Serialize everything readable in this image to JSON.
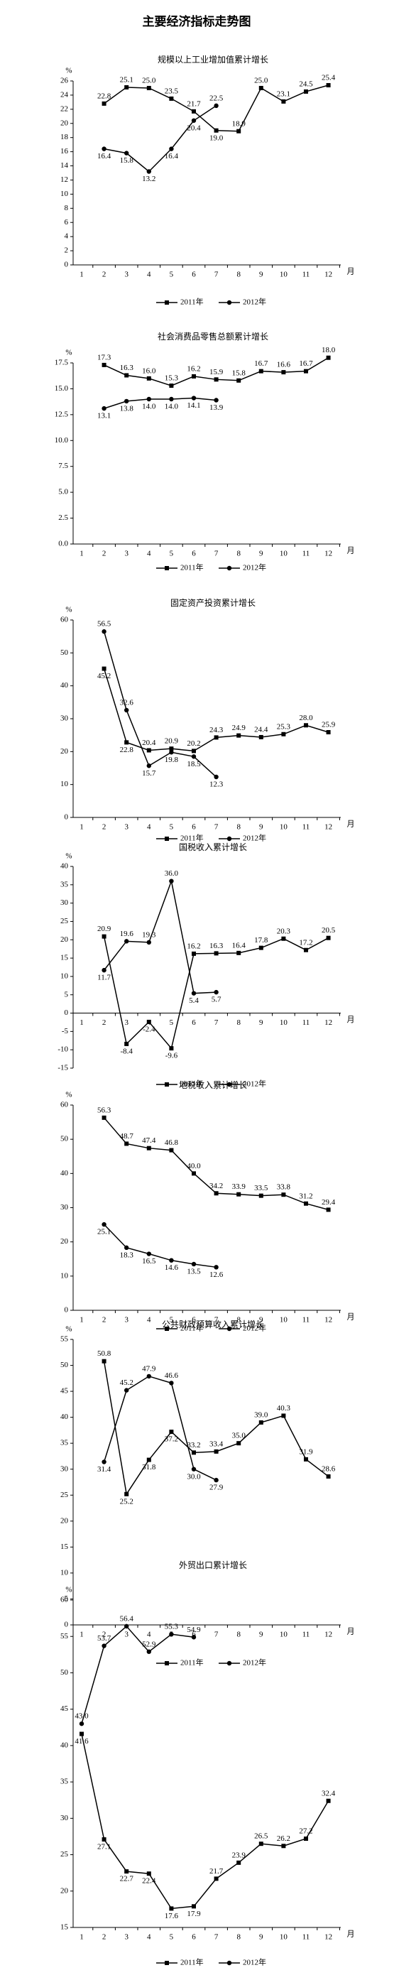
{
  "title": "主要经济指标走势图",
  "chart_data": [
    {
      "type": "line",
      "title": "规模以上工业增加值累计增长",
      "ylabel": "%",
      "xlabel": "月",
      "categories": [
        "1",
        "2",
        "3",
        "4",
        "5",
        "6",
        "7",
        "8",
        "9",
        "10",
        "11",
        "12"
      ],
      "ylim": [
        0,
        26
      ],
      "yticks": [
        0,
        2,
        4,
        6,
        8,
        10,
        12,
        14,
        16,
        18,
        20,
        22,
        24,
        26
      ],
      "series": [
        {
          "name": "2011年",
          "color": "#000000",
          "marker": "square",
          "values": [
            null,
            22.8,
            25.1,
            25.0,
            23.5,
            21.7,
            19.0,
            18.9,
            25.0,
            23.1,
            24.5,
            25.4
          ],
          "value_labels": [
            null,
            "22.8",
            "25.1",
            "25.0",
            "23.5",
            "21.7",
            "19.0",
            "18.9",
            "25.0",
            "23.1",
            "24.5",
            "25.4"
          ]
        },
        {
          "name": "2012年",
          "color": "#000000",
          "marker": "circle",
          "values": [
            null,
            16.4,
            15.8,
            13.2,
            16.4,
            20.4,
            22.5,
            null,
            null,
            null,
            null,
            null
          ],
          "value_labels": [
            null,
            "16.4",
            "15.8",
            "13.2",
            "16.4",
            "20.4",
            "22.5",
            null,
            null,
            null,
            null,
            null
          ]
        }
      ]
    },
    {
      "type": "line",
      "title": "社会消费品零售总额累计增长",
      "ylabel": "%",
      "xlabel": "月",
      "categories": [
        "1",
        "2",
        "3",
        "4",
        "5",
        "6",
        "7",
        "8",
        "9",
        "10",
        "11",
        "12"
      ],
      "ylim": [
        0,
        17.5
      ],
      "yticks": [
        {
          "value": 0,
          "label": "0.0"
        },
        {
          "value": 2.5,
          "label": "2.5"
        },
        {
          "value": 5,
          "label": "5.0"
        },
        {
          "value": 7.5,
          "label": "7.5"
        },
        {
          "value": 10,
          "label": "10.0"
        },
        {
          "value": 12.5,
          "label": "12.5"
        },
        {
          "value": 15,
          "label": "15.0"
        },
        {
          "value": 17.5,
          "label": "17.5"
        }
      ],
      "series": [
        {
          "name": "2011年",
          "color": "#000000",
          "marker": "square",
          "values": [
            null,
            17.3,
            16.3,
            16.0,
            15.3,
            16.2,
            15.9,
            15.8,
            16.7,
            16.6,
            16.7,
            18.0
          ],
          "value_labels": [
            null,
            "17.3",
            "16.3",
            "16.0",
            "15.3",
            "16.2",
            "15.9",
            "15.8",
            "16.7",
            "16.6",
            "16.7",
            "18.0"
          ]
        },
        {
          "name": "2012年",
          "color": "#000000",
          "marker": "circle",
          "values": [
            null,
            13.1,
            13.8,
            14.0,
            14.0,
            14.1,
            13.9,
            null,
            null,
            null,
            null,
            null
          ],
          "value_labels": [
            null,
            "13.1",
            "13.8",
            "14.0",
            "14.0",
            "14.1",
            "13.9",
            null,
            null,
            null,
            null,
            null
          ]
        }
      ]
    },
    {
      "type": "line",
      "title": "固定资产投资累计增长",
      "ylabel": "%",
      "xlabel": "月",
      "categories": [
        "1",
        "2",
        "3",
        "4",
        "5",
        "6",
        "7",
        "8",
        "9",
        "10",
        "11",
        "12"
      ],
      "ylim": [
        0,
        60
      ],
      "yticks": [
        0,
        10,
        20,
        30,
        40,
        50,
        60
      ],
      "series": [
        {
          "name": "2011年",
          "color": "#000000",
          "marker": "square",
          "values": [
            null,
            45.2,
            22.8,
            20.4,
            20.9,
            20.2,
            24.3,
            24.9,
            24.4,
            25.3,
            28.0,
            25.9
          ],
          "value_labels": [
            null,
            "45.2",
            "22.8",
            "20.4",
            "20.9",
            "20.2",
            "24.3",
            "24.9",
            "24.4",
            "25.3",
            "28.0",
            "25.9"
          ]
        },
        {
          "name": "2012年",
          "color": "#000000",
          "marker": "circle",
          "values": [
            null,
            56.5,
            32.6,
            15.7,
            19.8,
            18.5,
            12.3,
            null,
            null,
            null,
            null,
            null
          ],
          "value_labels": [
            null,
            "56.5",
            "32.6",
            "15.7",
            "19.8",
            "18.5",
            "12.3",
            null,
            null,
            null,
            null,
            null
          ]
        }
      ]
    },
    {
      "type": "line",
      "title": "国税收入累计增长",
      "ylabel": "%",
      "xlabel": "月",
      "categories": [
        "1",
        "2",
        "3",
        "4",
        "5",
        "6",
        "7",
        "8",
        "9",
        "10",
        "11",
        "12"
      ],
      "ylim": [
        -15,
        40
      ],
      "yticks": [
        -15,
        -10,
        -5,
        0,
        5,
        10,
        15,
        20,
        25,
        30,
        35,
        40
      ],
      "series": [
        {
          "name": "2011年",
          "color": "#000000",
          "marker": "square",
          "values": [
            null,
            20.9,
            -8.4,
            -2.4,
            -9.6,
            16.2,
            16.3,
            16.4,
            17.8,
            20.3,
            17.2,
            20.5
          ],
          "value_labels": [
            null,
            "20.9",
            "-8.4",
            "-2.4",
            "-9.6",
            "16.2",
            "16.3",
            "16.4",
            "17.8",
            "20.3",
            "17.2",
            "20.5"
          ]
        },
        {
          "name": "2012年",
          "color": "#000000",
          "marker": "circle",
          "values": [
            null,
            11.7,
            19.6,
            19.3,
            36.0,
            5.4,
            5.7,
            null,
            null,
            null,
            null,
            null
          ],
          "value_labels": [
            null,
            "11.7",
            "19.6",
            "19.3",
            "36.0",
            "5.4",
            "5.7",
            null,
            null,
            null,
            null,
            null
          ]
        }
      ]
    },
    {
      "type": "line",
      "title": "地税收入累计增长",
      "ylabel": "%",
      "xlabel": "月",
      "categories": [
        "1",
        "2",
        "3",
        "4",
        "5",
        "6",
        "7",
        "8",
        "9",
        "10",
        "11",
        "12"
      ],
      "ylim": [
        0,
        60
      ],
      "yticks": [
        0,
        10,
        20,
        30,
        40,
        50,
        60
      ],
      "series": [
        {
          "name": "2011年",
          "color": "#000000",
          "marker": "square",
          "values": [
            null,
            56.3,
            48.7,
            47.4,
            46.8,
            40.0,
            34.2,
            33.9,
            33.5,
            33.8,
            31.2,
            29.4
          ],
          "value_labels": [
            null,
            "56.3",
            "48.7",
            "47.4",
            "46.8",
            "40.0",
            "34.2",
            "33.9",
            "33.5",
            "33.8",
            "31.2",
            "29.4"
          ]
        },
        {
          "name": "2012年",
          "color": "#000000",
          "marker": "circle",
          "values": [
            null,
            25.1,
            18.3,
            16.5,
            14.6,
            13.5,
            12.6,
            null,
            null,
            null,
            null,
            null
          ],
          "value_labels": [
            null,
            "25.1",
            "18.3",
            "16.5",
            "14.6",
            "13.5",
            "12.6",
            null,
            null,
            null,
            null,
            null
          ]
        }
      ]
    },
    {
      "type": "line",
      "title": "公共财政预算收入累计增长",
      "ylabel": "%",
      "xlabel": "月",
      "categories": [
        "1",
        "2",
        "3",
        "4",
        "5",
        "6",
        "7",
        "8",
        "9",
        "10",
        "11",
        "12"
      ],
      "ylim": [
        0,
        55
      ],
      "yticks": [
        0,
        5,
        10,
        15,
        20,
        25,
        30,
        35,
        40,
        45,
        50,
        55
      ],
      "series": [
        {
          "name": "2011年",
          "color": "#000000",
          "marker": "square",
          "values": [
            null,
            50.8,
            25.2,
            31.8,
            37.2,
            33.2,
            33.4,
            35.0,
            39.0,
            40.3,
            31.9,
            28.6
          ],
          "value_labels": [
            null,
            "50.8",
            "25.2",
            "31.8",
            "37.2",
            "33.2",
            "33.4",
            "35.0",
            "39.0",
            "40.3",
            "31.9",
            "28.6"
          ]
        },
        {
          "name": "2012年",
          "color": "#000000",
          "marker": "circle",
          "values": [
            null,
            31.4,
            45.2,
            47.9,
            46.6,
            30.0,
            27.9,
            null,
            null,
            null,
            null,
            null
          ],
          "value_labels": [
            null,
            "31.4",
            "45.2",
            "47.9",
            "46.6",
            "30.0",
            "27.9",
            null,
            null,
            null,
            null,
            null
          ]
        }
      ]
    },
    {
      "type": "line",
      "title": "外贸出口累计增长",
      "ylabel": "%",
      "xlabel": "月",
      "categories": [
        "1",
        "2",
        "3",
        "4",
        "5",
        "6",
        "7",
        "8",
        "9",
        "10",
        "11",
        "12"
      ],
      "ylim": [
        15,
        60
      ],
      "yticks": [
        15,
        20,
        25,
        30,
        35,
        40,
        45,
        50,
        55,
        60
      ],
      "series": [
        {
          "name": "2011年",
          "color": "#000000",
          "marker": "square",
          "values": [
            41.6,
            27.1,
            22.7,
            22.4,
            17.6,
            17.9,
            21.7,
            23.9,
            26.5,
            26.2,
            27.2,
            32.4
          ],
          "value_labels": [
            "41.6",
            "27.1",
            "22.7",
            "22.4",
            "17.6",
            "17.9",
            "21.7",
            "23.9",
            "26.5",
            "26.2",
            "27.2",
            "32.4"
          ]
        },
        {
          "name": "2012年",
          "color": "#000000",
          "marker": "circle",
          "values": [
            43.0,
            53.7,
            56.4,
            52.9,
            55.3,
            54.9,
            null,
            null,
            null,
            null,
            null,
            null
          ],
          "value_labels": [
            "43.0",
            "53.7",
            "56.4",
            "52.9",
            "55.3",
            "54.9",
            null,
            null,
            null,
            null,
            null,
            null
          ]
        }
      ]
    }
  ]
}
